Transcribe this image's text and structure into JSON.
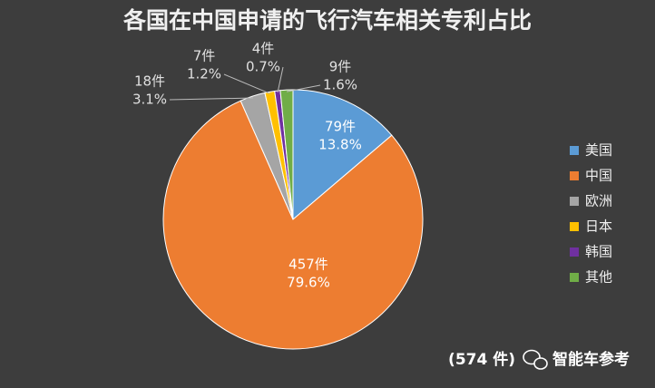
{
  "chart_data": {
    "type": "pie",
    "title": "各国在中国申请的飞行汽车相关专利占比",
    "categories": [
      "美国",
      "中国",
      "欧洲",
      "日本",
      "韩国",
      "其他"
    ],
    "values": [
      79,
      457,
      18,
      7,
      4,
      9
    ],
    "value_labels": [
      "79件",
      "457件",
      "18件",
      "7件",
      "4件",
      "9件"
    ],
    "percentages": [
      13.8,
      79.6,
      3.1,
      1.2,
      0.7,
      1.6
    ],
    "percentage_labels": [
      "13.8%",
      "79.6%",
      "3.1%",
      "1.2%",
      "0.7%",
      "1.6%"
    ],
    "colors": [
      "#5b9bd5",
      "#ed7d31",
      "#a5a5a5",
      "#ffc000",
      "#7030a0",
      "#70ad47"
    ],
    "legend": "right",
    "note": "(574 件)",
    "source": "智能车参考"
  }
}
